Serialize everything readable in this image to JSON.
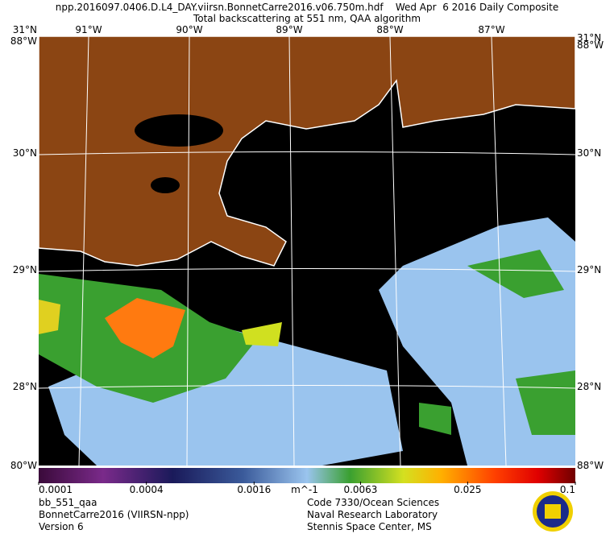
{
  "header": {
    "title": "npp.2016097.0406.D.L4_DAY.viirsn.BonnetCarre2016.v06.750m.hdf    Wed Apr  6 2016 Daily Composite",
    "subtitle": "Total backscattering at 551 nm, QAA algorithm"
  },
  "map": {
    "lon_labels": [
      "91°W",
      "90°W",
      "89°W",
      "88°W",
      "87°W"
    ],
    "corner_labels": [
      "31°N",
      "88°W",
      "80°W"
    ],
    "lat_labels": [
      "30°N",
      "29°N",
      "28°N"
    ]
  },
  "colorbar": {
    "lim": [
      0.0001,
      0.1
    ],
    "ticks": [
      0.0001,
      0.0004,
      0.0016,
      0.0063,
      0.025,
      0.1
    ],
    "unit": "m^-1",
    "log": true
  },
  "footer": {
    "left": [
      "bb_551_qaa",
      "BonnetCarre2016 (VIIRSN-npp)",
      "Version 6"
    ],
    "center": [
      "Code 7330/Ocean Sciences",
      "Naval Research Laboratory",
      "Stennis Space Center, MS"
    ]
  }
}
